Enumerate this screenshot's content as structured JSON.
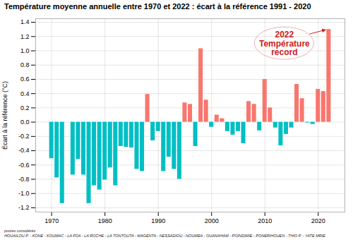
{
  "chart_data": {
    "type": "bar",
    "title": "Température moyenne annuelle entre 1970 et 2022 : écart à la référence 1991 - 2020",
    "y_label": "Écart à la référence (°C)",
    "x": [
      1970,
      1971,
      1972,
      1974,
      1975,
      1976,
      1977,
      1978,
      1979,
      1980,
      1981,
      1982,
      1983,
      1984,
      1985,
      1986,
      1987,
      1988,
      1989,
      1990,
      1991,
      1992,
      1993,
      1994,
      1995,
      1996,
      1997,
      1998,
      1999,
      2000,
      2001,
      2002,
      2003,
      2004,
      2005,
      2006,
      2007,
      2008,
      2009,
      2010,
      2011,
      2012,
      2013,
      2014,
      2015,
      2016,
      2017,
      2018,
      2019,
      2020,
      2021,
      2022
    ],
    "values": [
      -0.51,
      -0.78,
      -1.14,
      -0.74,
      -0.52,
      -0.74,
      -1.14,
      -0.89,
      -0.95,
      -0.81,
      -0.64,
      -0.89,
      -0.34,
      -0.35,
      -0.36,
      -0.66,
      -0.69,
      0.39,
      -0.26,
      -0.13,
      -0.69,
      -0.49,
      -0.66,
      -0.8,
      0.27,
      0.25,
      -0.34,
      1.03,
      0.31,
      -0.07,
      0.1,
      0.05,
      -0.13,
      -0.18,
      -0.13,
      -0.3,
      0.29,
      0.25,
      -0.12,
      0.6,
      0.2,
      -0.08,
      -0.33,
      -0.17,
      -0.08,
      0.53,
      0.33,
      -0.01,
      -0.03,
      0.46,
      0.43,
      1.3
    ],
    "colors": [
      "#00BFC4",
      "#00BFC4",
      "#00BFC4",
      "#00BFC4",
      "#00BFC4",
      "#00BFC4",
      "#00BFC4",
      "#00BFC4",
      "#00BFC4",
      "#00BFC4",
      "#00BFC4",
      "#00BFC4",
      "#00BFC4",
      "#00BFC4",
      "#00BFC4",
      "#00BFC4",
      "#00BFC4",
      "#F8766D",
      "#00BFC4",
      "#00BFC4",
      "#00BFC4",
      "#00BFC4",
      "#00BFC4",
      "#00BFC4",
      "#F8766D",
      "#F8766D",
      "#00BFC4",
      "#F8766D",
      "#F8766D",
      "#00BFC4",
      "#F8766D",
      "#F8766D",
      "#00BFC4",
      "#00BFC4",
      "#00BFC4",
      "#00BFC4",
      "#F8766D",
      "#F8766D",
      "#00BFC4",
      "#F8766D",
      "#F8766D",
      "#00BFC4",
      "#00BFC4",
      "#00BFC4",
      "#00BFC4",
      "#F8766D",
      "#F8766D",
      "#00BFC4",
      "#00BFC4",
      "#F8766D",
      "#F8766D",
      "#F8766D"
    ],
    "xlim": [
      1967,
      2025
    ],
    "xticks": [
      1970,
      1980,
      1990,
      2000,
      2010,
      2020
    ],
    "ylim": [
      -1.26,
      1.45
    ],
    "yticks": [
      -1.2,
      {
        "value": -1,
        "label": "-1.0"
      },
      -0.8,
      -0.6,
      -0.4,
      -0.2,
      {
        "value": 0,
        "label": "0.0"
      },
      0.2,
      0.4,
      0.6,
      0.8,
      {
        "value": 1,
        "label": "1.0"
      },
      1.2,
      1.4
    ],
    "grid": true,
    "annotation": {
      "text": [
        "2022",
        "Température",
        "record"
      ],
      "x": 2022,
      "y": 1.3,
      "color": "#CC2222"
    },
    "caption": [
      "postes considérés",
      "HOUAILOU P. - KONE - KOUMAC - LA FOA - LA ROCHE - LA TONTOUTA - MAGENTA - NESSADIOU - NOUMEA - OUANAHAM - POINDIMIE - PONERIHOUEN - THIO P. - YATE MRIE"
    ]
  }
}
